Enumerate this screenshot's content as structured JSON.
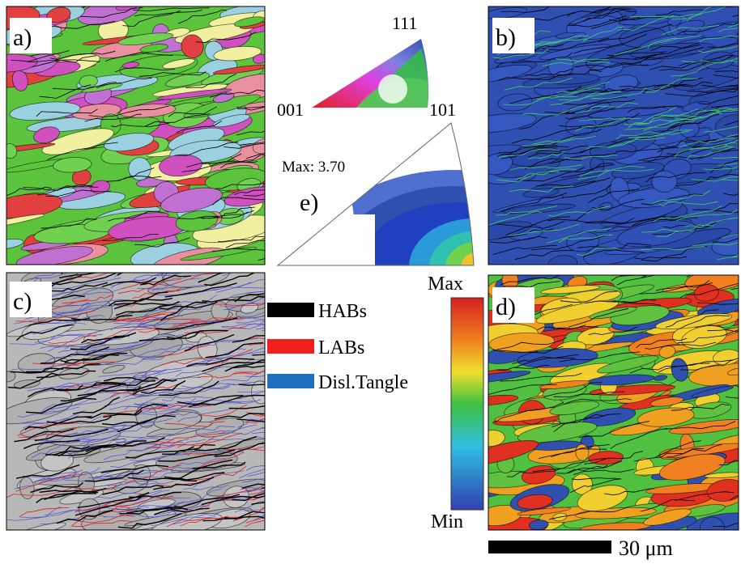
{
  "panels": {
    "a": "a)",
    "b": "b)",
    "c": "c)",
    "d": "d)",
    "e": "e)"
  },
  "ipf": {
    "top": "111",
    "left": "001",
    "right": "101"
  },
  "pole_figure": {
    "max_label": "Max: 3.70"
  },
  "legend": [
    "HABs",
    "LABs",
    "Disl.Tangle"
  ],
  "colorbar": {
    "max": "Max",
    "min": "Min"
  },
  "scale_bar": "30 μm"
}
